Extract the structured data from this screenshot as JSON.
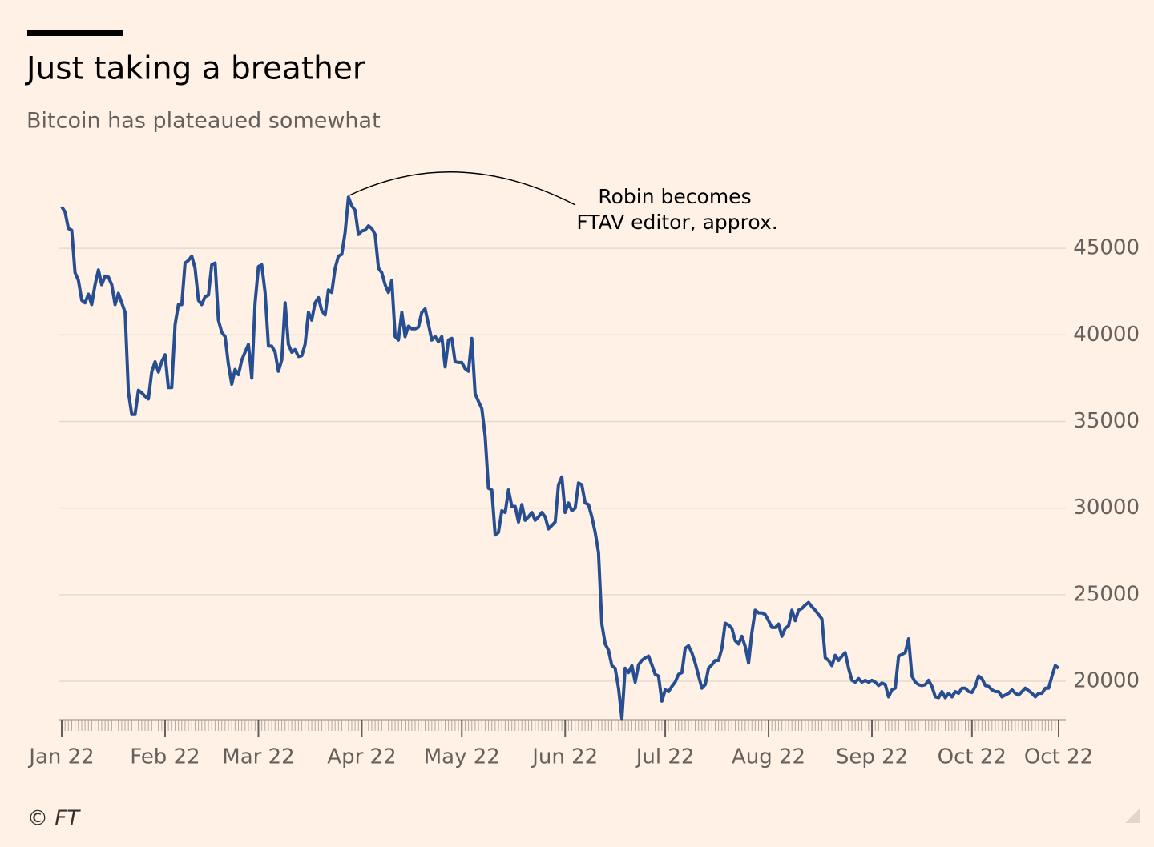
{
  "chart_data": {
    "type": "line",
    "title": "Just taking a breather",
    "subtitle": "Bitcoin has plateaued somewhat",
    "annotation": [
      "Robin becomes",
      "FTAV editor, approx."
    ],
    "source": "© FT",
    "color": "#264e91",
    "grid": true,
    "y_axis_side": "right",
    "ylim": [
      17800,
      50000
    ],
    "yticks": [
      20000,
      25000,
      30000,
      35000,
      40000,
      45000
    ],
    "categories": [
      "Jan 22",
      null,
      null,
      null,
      null,
      null,
      null,
      null,
      null,
      null,
      null,
      null,
      null,
      null,
      null,
      null,
      null,
      null,
      null,
      null,
      null,
      null,
      null,
      null,
      null,
      null,
      null,
      null,
      null,
      null,
      null,
      "Feb 22",
      null,
      null,
      null,
      null,
      null,
      null,
      null,
      null,
      null,
      null,
      null,
      null,
      null,
      null,
      null,
      null,
      null,
      null,
      null,
      null,
      null,
      null,
      null,
      null,
      null,
      null,
      null,
      "Mar 22",
      null,
      null,
      null,
      null,
      null,
      null,
      null,
      null,
      null,
      null,
      null,
      null,
      null,
      null,
      null,
      null,
      null,
      null,
      null,
      null,
      null,
      null,
      null,
      null,
      null,
      null,
      null,
      null,
      null,
      null,
      "Apr 22",
      null,
      null,
      null,
      null,
      null,
      null,
      null,
      null,
      null,
      null,
      null,
      null,
      null,
      null,
      null,
      null,
      null,
      null,
      null,
      null,
      null,
      null,
      null,
      null,
      null,
      null,
      null,
      null,
      null,
      "May 22",
      null,
      null,
      null,
      null,
      null,
      null,
      null,
      null,
      null,
      null,
      null,
      null,
      null,
      null,
      null,
      null,
      null,
      null,
      null,
      null,
      null,
      null,
      null,
      null,
      null,
      null,
      null,
      null,
      null,
      null,
      "Jun 22",
      null,
      null,
      null,
      null,
      null,
      null,
      null,
      null,
      null,
      null,
      null,
      null,
      null,
      null,
      null,
      null,
      null,
      null,
      null,
      null,
      null,
      null,
      null,
      null,
      null,
      null,
      null,
      null,
      null,
      "Jul 22",
      null,
      null,
      null,
      null,
      null,
      null,
      null,
      null,
      null,
      null,
      null,
      null,
      null,
      null,
      null,
      null,
      null,
      null,
      null,
      null,
      null,
      null,
      null,
      null,
      null,
      null,
      null,
      null,
      null,
      null,
      "Aug 22",
      null,
      null,
      null,
      null,
      null,
      null,
      null,
      null,
      null,
      null,
      null,
      null,
      null,
      null,
      null,
      null,
      null,
      null,
      null,
      null,
      null,
      null,
      null,
      null,
      null,
      null,
      null,
      null,
      null,
      null,
      "Sep 22",
      null,
      null,
      null,
      null,
      null,
      null,
      null,
      null,
      null,
      null,
      null,
      null,
      null,
      null,
      null,
      null,
      null,
      null,
      null,
      null,
      null,
      null,
      null,
      null,
      null,
      null,
      null,
      null,
      null,
      "Oct 22",
      null,
      null,
      null,
      null,
      null,
      null,
      null,
      null,
      null,
      null,
      null,
      null,
      null,
      null,
      null,
      null,
      null,
      null,
      null,
      null,
      null,
      null,
      null,
      null,
      null,
      "Oct 22"
    ],
    "values": [
      47400,
      47100,
      46150,
      46050,
      43600,
      43150,
      42000,
      41850,
      42350,
      41750,
      42900,
      43750,
      42900,
      43400,
      43350,
      42900,
      41750,
      42400,
      41850,
      41300,
      36700,
      35400,
      35400,
      36800,
      36650,
      36450,
      36300,
      37850,
      38450,
      37850,
      38450,
      38850,
      36950,
      36950,
      40600,
      41750,
      41750,
      44150,
      44300,
      44550,
      43850,
      42000,
      41750,
      42200,
      42300,
      44050,
      44150,
      40850,
      40150,
      39900,
      38300,
      37150,
      38000,
      37700,
      38550,
      39000,
      39450,
      37500,
      41850,
      43950,
      44050,
      42450,
      39350,
      39350,
      39000,
      37900,
      38550,
      41850,
      39450,
      39000,
      39150,
      38750,
      38800,
      39450,
      41300,
      40850,
      41850,
      42150,
      41400,
      41150,
      42600,
      42450,
      43850,
      44550,
      44650,
      45900,
      47950,
      47450,
      47200,
      45800,
      46000,
      46050,
      46300,
      46150,
      45800,
      43850,
      43600,
      42900,
      42450,
      43150,
      39900,
      39700,
      41300,
      39900,
      40500,
      40350,
      40350,
      40450,
      41300,
      41500,
      40600,
      39700,
      39900,
      39600,
      39900,
      38150,
      39700,
      39800,
      38450,
      38400,
      38400,
      38050,
      37900,
      39800,
      36600,
      36150,
      35750,
      34150,
      31150,
      31050,
      28450,
      28600,
      29850,
      29750,
      31050,
      30100,
      30100,
      29200,
      30200,
      29300,
      29500,
      29750,
      29300,
      29500,
      29750,
      29500,
      28800,
      29000,
      29200,
      31350,
      31800,
      29750,
      30300,
      29850,
      30000,
      31450,
      31350,
      30300,
      30200,
      29500,
      28600,
      27450,
      23300,
      22150,
      21800,
      20900,
      20750,
      19600,
      17850,
      20750,
      20500,
      20900,
      19950,
      20950,
      21200,
      21350,
      21450,
      20950,
      20400,
      20300,
      18850,
      19500,
      19400,
      19700,
      19950,
      20400,
      20500,
      21900,
      22050,
      21650,
      21050,
      20300,
      19600,
      19800,
      20750,
      20950,
      21200,
      21200,
      21900,
      23350,
      23250,
      23050,
      22350,
      22150,
      22600,
      22000,
      21050,
      22800,
      24100,
      23950,
      23950,
      23850,
      23500,
      23100,
      23100,
      23300,
      22600,
      23050,
      23200,
      24100,
      23500,
      24100,
      24200,
      24400,
      24550,
      24300,
      24100,
      23850,
      23600,
      21350,
      21200,
      20900,
      21500,
      21200,
      21450,
      21650,
      20750,
      20050,
      19950,
      20150,
      19950,
      20050,
      19950,
      20050,
      19950,
      19750,
      19900,
      19800,
      19100,
      19500,
      19600,
      21450,
      21550,
      21650,
      22450,
      20300,
      19950,
      19800,
      19750,
      19800,
      20050,
      19700,
      19100,
      19050,
      19400,
      19050,
      19300,
      19100,
      19400,
      19300,
      19600,
      19600,
      19400,
      19350,
      19700,
      20300,
      20150,
      19750,
      19700,
      19500,
      19400,
      19400,
      19100,
      19200,
      19300,
      19500,
      19300,
      19200,
      19400,
      19600,
      19450,
      19300,
      19100,
      19300,
      19300,
      19600,
      19600,
      20300,
      20900,
      20750
    ]
  }
}
